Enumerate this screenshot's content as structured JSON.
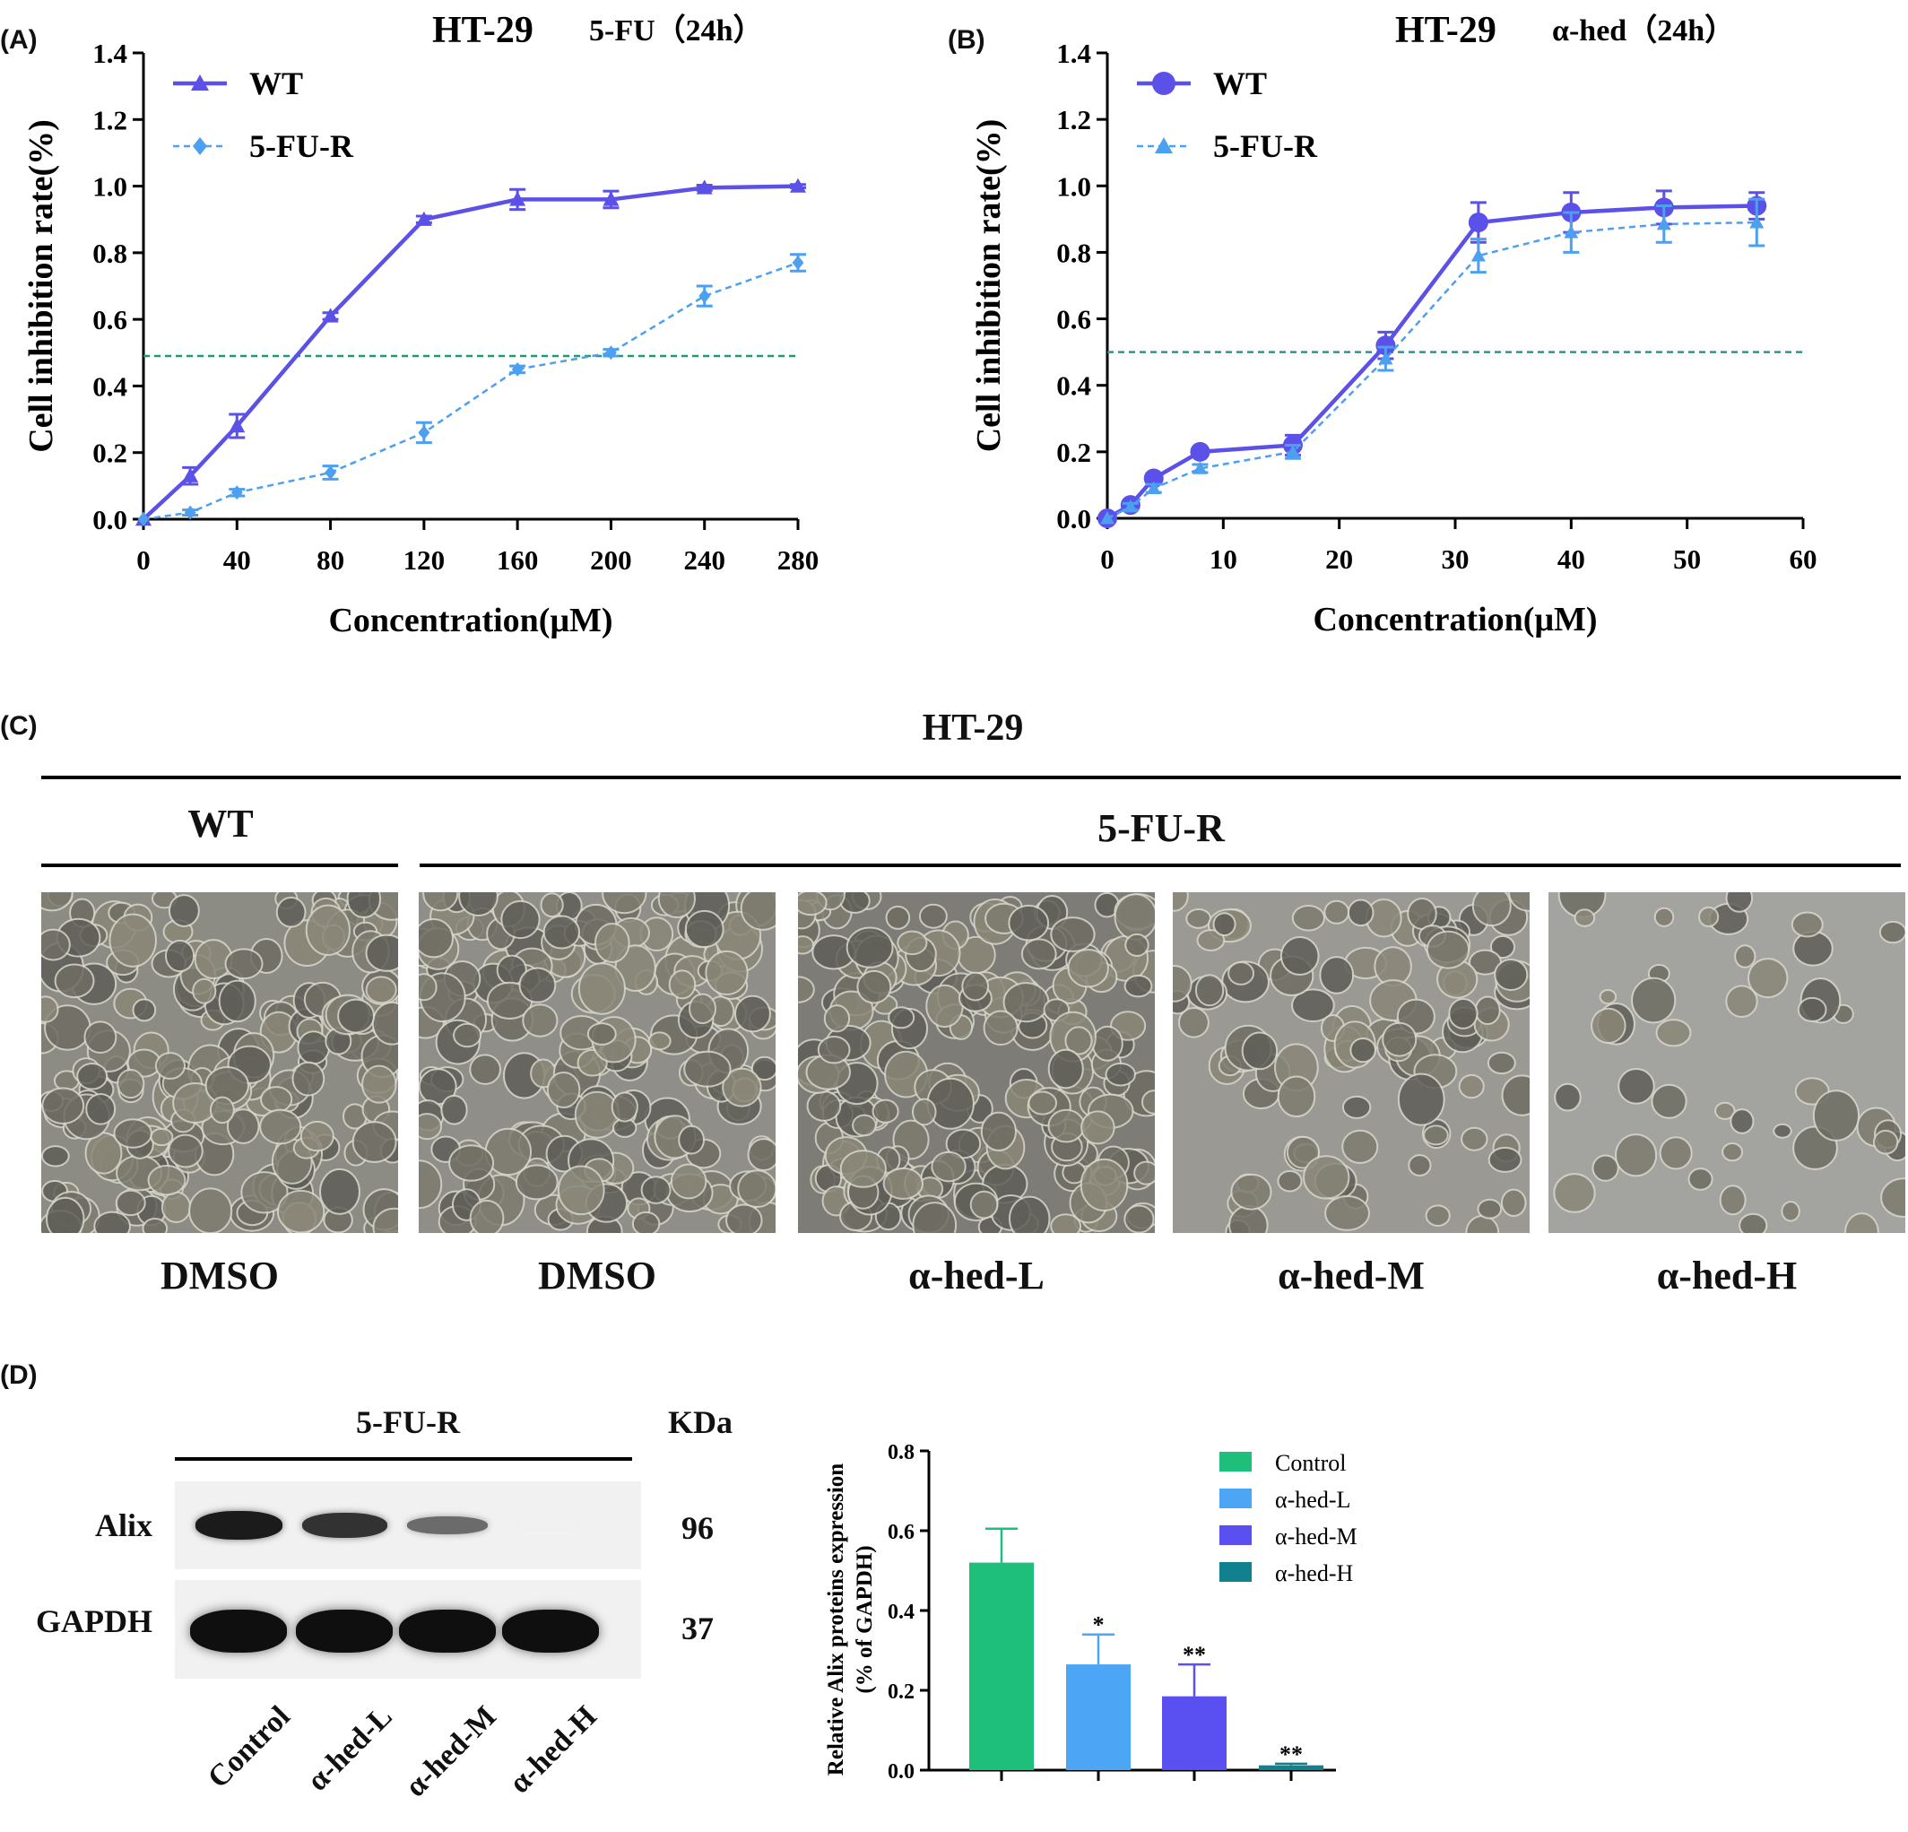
{
  "panelA": {
    "letter": "(A)",
    "title_main": "HT-29",
    "title_sub": "5-FU（24h）",
    "xlabel": "Concentration(μM)",
    "ylabel": "Cell inhibition rate(%)",
    "colors": {
      "WT": "#5b50e8",
      "5-FU-R": "#4d9ff0",
      "ref": "#1f9a6e"
    }
  },
  "panelB": {
    "letter": "(B)",
    "title_main": "HT-29",
    "title_sub": "α-hed（24h）",
    "xlabel": "Concentration(μM)",
    "ylabel": "Cell inhibition rate(%)",
    "colors": {
      "WT": "#5b50e8",
      "5-FU-R": "#4d9ff0",
      "ref": "#1f9a9a"
    }
  },
  "panelC": {
    "letter": "(C)",
    "title": "HT-29",
    "group_wt": "WT",
    "group_r": "5-FU-R",
    "images": [
      {
        "label": "DMSO",
        "texture": "dense-flat"
      },
      {
        "label": "DMSO",
        "texture": "dense-cobble"
      },
      {
        "label": "α-hed-L",
        "texture": "dense-round"
      },
      {
        "label": "α-hed-M",
        "texture": "clusters"
      },
      {
        "label": "α-hed-H",
        "texture": "sparse"
      }
    ]
  },
  "panelD": {
    "letter": "(D)",
    "header": "5-FU-R",
    "kda_label": "KDa",
    "rows": [
      {
        "name": "Alix",
        "kda": "96",
        "intensity": [
          0.95,
          0.85,
          0.6,
          0.02
        ]
      },
      {
        "name": "GAPDH",
        "kda": "37",
        "intensity": [
          1.0,
          1.0,
          1.0,
          1.0
        ]
      }
    ],
    "lanes": [
      "Control",
      "α-hed-L",
      "α-hed-M",
      "α-hed-H"
    ]
  },
  "chart_data": [
    {
      "id": "A",
      "type": "line",
      "title": "HT-29   5-FU（24h）",
      "xlabel": "Concentration(μM)",
      "ylabel": "Cell inhibition rate(%)",
      "xlim": [
        0,
        280
      ],
      "ylim": [
        0.0,
        1.4
      ],
      "xticks": [
        0,
        40,
        80,
        120,
        160,
        200,
        240,
        280
      ],
      "yticks": [
        "0.0",
        "0.2",
        "0.4",
        "0.6",
        "0.8",
        "1.0",
        "1.2",
        "1.4"
      ],
      "reference_line_y": 0.49,
      "legend_position": "top-left",
      "series": [
        {
          "name": "WT",
          "marker": "triangle",
          "style": "solid",
          "x": [
            0,
            20,
            40,
            80,
            120,
            160,
            200,
            240,
            280
          ],
          "y": [
            0.0,
            0.13,
            0.28,
            0.61,
            0.9,
            0.96,
            0.96,
            0.995,
            1.0
          ],
          "err": [
            0.0,
            0.025,
            0.035,
            0.01,
            0.01,
            0.03,
            0.025,
            0.008,
            0.005
          ]
        },
        {
          "name": "5-FU-R",
          "marker": "diamond",
          "style": "dashed",
          "x": [
            0,
            20,
            40,
            80,
            120,
            160,
            200,
            240,
            280
          ],
          "y": [
            0.0,
            0.02,
            0.08,
            0.14,
            0.26,
            0.45,
            0.5,
            0.67,
            0.77
          ],
          "err": [
            0.0,
            0.008,
            0.01,
            0.02,
            0.03,
            0.01,
            0.01,
            0.03,
            0.025
          ]
        }
      ]
    },
    {
      "id": "B",
      "type": "line",
      "title": "HT-29   α-hed（24h）",
      "xlabel": "Concentration(μM)",
      "ylabel": "Cell inhibition rate(%)",
      "xlim": [
        0,
        60
      ],
      "ylim": [
        0.0,
        1.4
      ],
      "xticks": [
        0,
        10,
        20,
        30,
        40,
        50,
        60
      ],
      "yticks": [
        "0.0",
        "0.2",
        "0.4",
        "0.6",
        "0.8",
        "1.0",
        "1.2",
        "1.4"
      ],
      "reference_line_y": 0.5,
      "legend_position": "top-left",
      "series": [
        {
          "name": "WT",
          "marker": "circle",
          "style": "solid",
          "x": [
            0,
            2,
            4,
            8,
            16,
            24,
            32,
            40,
            48,
            56
          ],
          "y": [
            0.0,
            0.04,
            0.12,
            0.2,
            0.22,
            0.52,
            0.89,
            0.92,
            0.935,
            0.94
          ],
          "err": [
            0.0,
            0.01,
            0.015,
            0.012,
            0.03,
            0.04,
            0.06,
            0.06,
            0.05,
            0.04
          ]
        },
        {
          "name": "5-FU-R",
          "marker": "triangle",
          "style": "dashed",
          "x": [
            0,
            2,
            4,
            8,
            16,
            24,
            32,
            40,
            48,
            56
          ],
          "y": [
            0.0,
            0.035,
            0.09,
            0.15,
            0.2,
            0.48,
            0.79,
            0.86,
            0.885,
            0.89
          ],
          "err": [
            0.0,
            0.01,
            0.012,
            0.012,
            0.02,
            0.035,
            0.05,
            0.06,
            0.055,
            0.07
          ]
        }
      ]
    },
    {
      "id": "D",
      "type": "bar",
      "ylabel": "Relative Alix proteins expression (% of GAPDH)",
      "ylabel_lines": [
        "Relative Alix proteins expression",
        "(% of GAPDH)"
      ],
      "ylim": [
        0.0,
        0.8
      ],
      "yticks": [
        "0.0",
        "0.2",
        "0.4",
        "0.6",
        "0.8"
      ],
      "legend_position": "top-right",
      "categories": [
        "Control",
        "α-hed-L",
        "α-hed-M",
        "α-hed-H"
      ],
      "values": [
        0.52,
        0.265,
        0.185,
        0.012
      ],
      "err": [
        0.085,
        0.075,
        0.08,
        0.004
      ],
      "significance": [
        "",
        "*",
        "**",
        "**"
      ],
      "colors": [
        "#1dbf7a",
        "#4da6f5",
        "#5a4ff0",
        "#11808f"
      ]
    }
  ]
}
